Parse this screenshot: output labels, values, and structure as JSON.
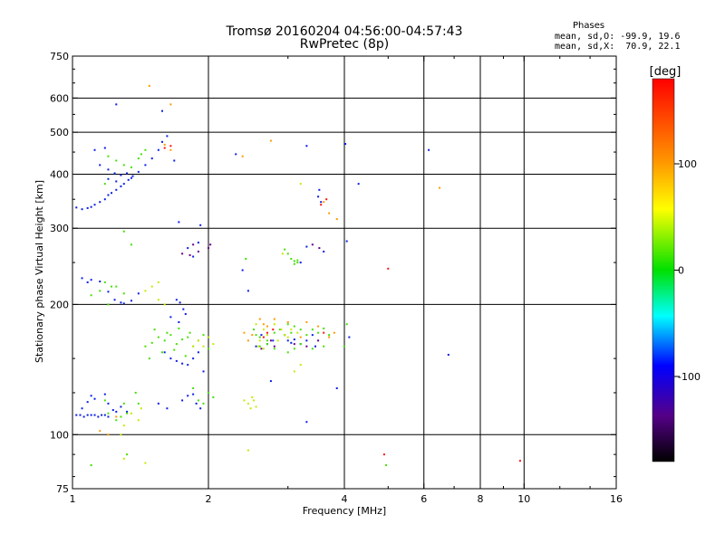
{
  "header": {
    "title": "Tromsø 20160204 04:56:00-04:57:43",
    "subtitle": "RwPretec (8p)",
    "phases_label": "Phases",
    "stats_o": "mean, sd,O: -99.9, 19.6",
    "stats_x": "mean, sd,X:  70.9, 22.1"
  },
  "chart_data": {
    "type": "scatter",
    "xlabel": "Frequency [MHz]",
    "ylabel": "Stationary phase Virtual Height [km]",
    "xscale": "log",
    "yscale": "log",
    "xlim": [
      1,
      16
    ],
    "ylim": [
      75,
      750
    ],
    "xticks": [
      1,
      2,
      4,
      6,
      8,
      10,
      16
    ],
    "xtick_labels": [
      "1",
      "2",
      "4",
      "6",
      "8",
      "10",
      "16"
    ],
    "xgrid": [
      2,
      4,
      6,
      8,
      10
    ],
    "yticks": [
      75,
      100,
      200,
      300,
      400,
      500,
      600,
      750
    ],
    "ytick_labels": [
      "75",
      "100",
      "200",
      "300",
      "400",
      "500",
      "600",
      "750"
    ],
    "ygrid": [
      100,
      200,
      300,
      400,
      500,
      600
    ],
    "grid": true,
    "colorbar": {
      "label": "[deg]",
      "range": [
        -180,
        180
      ],
      "ticks": [
        100,
        0,
        -100
      ],
      "tick_labels": [
        "100",
        "0",
        "-100"
      ]
    },
    "series": [
      {
        "points": [
          [
            1.02,
            111
          ],
          [
            1.04,
            111
          ],
          [
            1.06,
            110
          ],
          [
            1.08,
            111
          ],
          [
            1.1,
            111
          ],
          [
            1.12,
            111
          ],
          [
            1.14,
            110
          ],
          [
            1.16,
            111
          ],
          [
            1.18,
            111
          ],
          [
            1.2,
            110
          ],
          [
            1.05,
            115
          ],
          [
            1.08,
            119
          ],
          [
            1.1,
            123
          ],
          [
            1.12,
            121
          ],
          [
            1.18,
            124
          ],
          [
            1.2,
            118
          ],
          [
            1.23,
            114
          ],
          [
            1.25,
            113
          ],
          [
            1.28,
            116
          ],
          [
            1.32,
            113
          ],
          [
            1.05,
            230
          ],
          [
            1.08,
            225
          ],
          [
            1.1,
            228
          ],
          [
            1.15,
            226
          ],
          [
            1.2,
            214
          ],
          [
            1.24,
            205
          ],
          [
            1.28,
            202
          ],
          [
            1.3,
            201
          ],
          [
            1.35,
            204
          ],
          [
            1.4,
            212
          ],
          [
            1.02,
            335
          ],
          [
            1.05,
            332
          ],
          [
            1.08,
            334
          ],
          [
            1.1,
            336
          ],
          [
            1.12,
            340
          ],
          [
            1.15,
            345
          ],
          [
            1.18,
            350
          ],
          [
            1.2,
            358
          ],
          [
            1.22,
            362
          ],
          [
            1.25,
            368
          ],
          [
            1.28,
            375
          ],
          [
            1.3,
            380
          ],
          [
            1.33,
            388
          ],
          [
            1.36,
            396
          ],
          [
            1.4,
            405
          ],
          [
            1.45,
            420
          ],
          [
            1.5,
            435
          ],
          [
            1.55,
            455
          ],
          [
            1.58,
            475
          ],
          [
            1.62,
            490
          ],
          [
            1.15,
            420
          ],
          [
            1.2,
            410
          ],
          [
            1.24,
            402
          ],
          [
            1.28,
            398
          ],
          [
            1.32,
            402
          ],
          [
            1.2,
            390
          ],
          [
            1.25,
            385
          ],
          [
            1.35,
            392
          ],
          [
            1.12,
            455
          ],
          [
            1.18,
            460
          ],
          [
            1.25,
            580
          ],
          [
            1.58,
            560
          ],
          [
            1.68,
            430
          ],
          [
            1.72,
            310
          ],
          [
            1.8,
            270
          ],
          [
            1.92,
            305
          ],
          [
            1.9,
            278
          ],
          [
            1.85,
            258
          ],
          [
            1.7,
            205
          ],
          [
            1.73,
            202
          ],
          [
            1.76,
            195
          ],
          [
            1.78,
            190
          ],
          [
            1.65,
            187
          ],
          [
            1.72,
            182
          ],
          [
            1.6,
            155
          ],
          [
            1.65,
            150
          ],
          [
            1.7,
            148
          ],
          [
            1.75,
            146
          ],
          [
            1.8,
            145
          ],
          [
            1.85,
            150
          ],
          [
            1.9,
            155
          ],
          [
            1.95,
            140
          ],
          [
            1.75,
            120
          ],
          [
            1.8,
            123
          ],
          [
            1.85,
            124
          ],
          [
            1.88,
            118
          ],
          [
            1.62,
            115
          ],
          [
            1.55,
            118
          ],
          [
            1.92,
            115
          ],
          [
            2.3,
            445
          ],
          [
            2.38,
            240
          ],
          [
            2.45,
            215
          ],
          [
            2.55,
            160
          ],
          [
            2.62,
            170
          ],
          [
            2.7,
            162
          ],
          [
            2.75,
            133
          ],
          [
            2.78,
            165
          ],
          [
            2.95,
            170
          ],
          [
            3.0,
            165
          ],
          [
            3.05,
            163
          ],
          [
            3.1,
            166
          ],
          [
            3.2,
            162
          ],
          [
            3.3,
            165
          ],
          [
            3.4,
            170
          ],
          [
            3.45,
            160
          ],
          [
            3.3,
            465
          ],
          [
            3.52,
            368
          ],
          [
            3.5,
            355
          ],
          [
            3.55,
            345
          ],
          [
            3.3,
            272
          ],
          [
            3.2,
            250
          ],
          [
            3.6,
            265
          ],
          [
            3.85,
            128
          ],
          [
            3.3,
            107
          ],
          [
            4.05,
            280
          ],
          [
            4.1,
            168
          ],
          [
            4.3,
            380
          ],
          [
            6.15,
            455
          ],
          [
            6.8,
            153
          ],
          [
            4.02,
            470
          ]
        ]
      },
      {
        "points": [
          [
            1.45,
            160
          ],
          [
            1.5,
            163
          ],
          [
            1.55,
            168
          ],
          [
            1.6,
            165
          ],
          [
            1.65,
            170
          ],
          [
            1.7,
            162
          ],
          [
            1.75,
            166
          ],
          [
            1.8,
            168
          ],
          [
            1.85,
            160
          ],
          [
            1.9,
            165
          ],
          [
            1.95,
            170
          ],
          [
            2.0,
            158
          ],
          [
            1.52,
            175
          ],
          [
            1.62,
            172
          ],
          [
            1.72,
            176
          ],
          [
            1.82,
            172
          ],
          [
            1.48,
            150
          ],
          [
            1.58,
            155
          ],
          [
            1.68,
            157
          ],
          [
            1.78,
            152
          ],
          [
            2.52,
            175
          ],
          [
            2.55,
            170
          ],
          [
            2.6,
            168
          ],
          [
            2.7,
            165
          ],
          [
            2.8,
            172
          ],
          [
            2.88,
            175
          ],
          [
            2.95,
            170
          ],
          [
            3.0,
            180
          ],
          [
            3.05,
            172
          ],
          [
            3.1,
            178
          ],
          [
            3.2,
            175
          ],
          [
            3.3,
            170
          ],
          [
            3.4,
            175
          ],
          [
            3.5,
            172
          ],
          [
            3.6,
            176
          ],
          [
            3.7,
            170
          ],
          [
            2.6,
            160
          ],
          [
            2.7,
            162
          ],
          [
            2.8,
            158
          ],
          [
            3.0,
            155
          ],
          [
            3.1,
            158
          ],
          [
            3.2,
            162
          ],
          [
            3.4,
            158
          ],
          [
            3.6,
            160
          ],
          [
            3.05,
            255
          ],
          [
            3.1,
            252
          ],
          [
            3.15,
            250
          ],
          [
            3.0,
            262
          ],
          [
            2.95,
            268
          ],
          [
            3.1,
            248
          ],
          [
            3.15,
            253
          ],
          [
            1.25,
            108
          ],
          [
            1.28,
            110
          ],
          [
            1.32,
            112
          ],
          [
            1.4,
            118
          ],
          [
            1.38,
            125
          ],
          [
            1.3,
            118
          ],
          [
            1.2,
            112
          ],
          [
            1.18,
            120
          ],
          [
            1.2,
            440
          ],
          [
            1.25,
            430
          ],
          [
            1.3,
            420
          ],
          [
            1.35,
            415
          ],
          [
            1.4,
            435
          ],
          [
            1.42,
            445
          ],
          [
            1.45,
            455
          ],
          [
            1.1,
            210
          ],
          [
            1.15,
            215
          ],
          [
            1.2,
            200
          ],
          [
            1.22,
            220
          ],
          [
            1.18,
            225
          ],
          [
            1.3,
            212
          ],
          [
            1.25,
            220
          ],
          [
            1.9,
            120
          ],
          [
            1.95,
            118
          ],
          [
            2.0,
            125
          ],
          [
            2.05,
            122
          ],
          [
            1.85,
            128
          ],
          [
            4.05,
            180
          ],
          [
            4.0,
            160
          ],
          [
            1.35,
            275
          ],
          [
            1.18,
            380
          ],
          [
            1.32,
            90
          ],
          [
            1.1,
            85
          ],
          [
            4.95,
            85
          ],
          [
            2.42,
            255
          ],
          [
            1.3,
            295
          ]
        ]
      },
      {
        "points": [
          [
            2.4,
            120
          ],
          [
            2.45,
            118
          ],
          [
            2.5,
            122
          ],
          [
            2.55,
            116
          ],
          [
            2.48,
            115
          ],
          [
            2.52,
            120
          ],
          [
            2.8,
            180
          ],
          [
            2.9,
            175
          ],
          [
            3.0,
            168
          ],
          [
            2.85,
            165
          ],
          [
            2.95,
            170
          ],
          [
            3.05,
            175
          ],
          [
            3.15,
            172
          ],
          [
            2.7,
            170
          ],
          [
            2.6,
            165
          ],
          [
            2.55,
            180
          ],
          [
            2.65,
            175
          ],
          [
            2.58,
            160
          ],
          [
            2.65,
            158
          ],
          [
            1.35,
            112
          ],
          [
            1.4,
            108
          ],
          [
            1.42,
            115
          ],
          [
            1.3,
            105
          ],
          [
            1.28,
            100
          ],
          [
            1.55,
            225
          ],
          [
            1.5,
            220
          ],
          [
            1.45,
            215
          ],
          [
            1.55,
            205
          ],
          [
            1.6,
            200
          ],
          [
            1.85,
            160
          ],
          [
            1.9,
            165
          ],
          [
            1.95,
            160
          ],
          [
            2.0,
            168
          ],
          [
            2.05,
            162
          ],
          [
            3.2,
            145
          ],
          [
            3.1,
            140
          ],
          [
            2.45,
            92
          ],
          [
            1.45,
            86
          ],
          [
            1.3,
            88
          ],
          [
            3.2,
            380
          ],
          [
            2.92,
            262
          ]
        ]
      },
      {
        "points": [
          [
            2.75,
            478
          ],
          [
            1.6,
            468
          ],
          [
            1.65,
            455
          ],
          [
            1.65,
            580
          ],
          [
            1.48,
            640
          ],
          [
            6.5,
            372
          ],
          [
            3.6,
            345
          ],
          [
            2.6,
            185
          ],
          [
            2.65,
            180
          ],
          [
            2.7,
            178
          ],
          [
            2.8,
            185
          ],
          [
            3.0,
            182
          ],
          [
            3.3,
            182
          ],
          [
            3.5,
            178
          ],
          [
            2.5,
            170
          ],
          [
            2.4,
            172
          ],
          [
            2.45,
            165
          ],
          [
            3.7,
            168
          ],
          [
            3.8,
            172
          ],
          [
            3.2,
            168
          ],
          [
            1.2,
            100
          ],
          [
            1.15,
            102
          ],
          [
            1.25,
            110
          ],
          [
            2.38,
            440
          ],
          [
            3.7,
            325
          ],
          [
            3.85,
            315
          ]
        ]
      },
      {
        "points": [
          [
            1.6,
            460
          ],
          [
            1.65,
            465
          ],
          [
            4.9,
            90
          ],
          [
            5.0,
            242
          ],
          [
            9.8,
            87
          ],
          [
            3.55,
            340
          ],
          [
            3.65,
            350
          ],
          [
            2.7,
            172
          ],
          [
            2.65,
            168
          ],
          [
            2.78,
            175
          ],
          [
            3.6,
            172
          ]
        ]
      },
      {
        "points": [
          [
            1.85,
            275
          ],
          [
            1.9,
            265
          ],
          [
            1.82,
            260
          ],
          [
            2.0,
            270
          ],
          [
            2.02,
            275
          ],
          [
            3.4,
            275
          ],
          [
            3.52,
            270
          ],
          [
            2.75,
            165
          ],
          [
            2.8,
            160
          ],
          [
            2.62,
            158
          ],
          [
            3.5,
            165
          ],
          [
            3.3,
            160
          ],
          [
            3.1,
            162
          ],
          [
            1.75,
            262
          ]
        ]
      }
    ]
  }
}
